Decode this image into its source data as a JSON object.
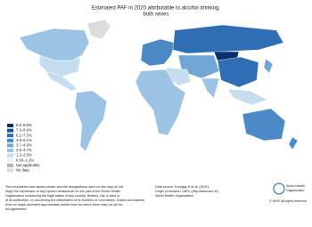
{
  "title": [
    "Estimated PAF in 2020 attributable to alcohol drinking,",
    "both sexes"
  ],
  "legend": [
    {
      "label": "8.6–9.8%",
      "color": "#08306b"
    },
    {
      "label": "7.3–8.6%",
      "color": "#1c4f99"
    },
    {
      "label": "6.1–7.3%",
      "color": "#2f6db4"
    },
    {
      "label": "4.9–6.1%",
      "color": "#4b8ac6"
    },
    {
      "label": "3.7–4.9%",
      "color": "#6fa6d6"
    },
    {
      "label": "2.5–3.7%",
      "color": "#9cc3e4"
    },
    {
      "label": "1.2–2.5%",
      "color": "#c6dcef"
    },
    {
      "label": "0.00–1.2%",
      "color": "#e8f1f9"
    },
    {
      "label": "Not applicable",
      "color": "#b5b5b5"
    },
    {
      "label": "No data",
      "color": "#dcdcdc"
    }
  ],
  "disclaimer": [
    "The boundaries and names shown and the designations used on this map do not",
    "imply the expression of any opinion whatsoever on the part of the World Health",
    "Organization concerning the legal status of any country, territory, city or area or",
    "of its authorities, or concerning the delimitation of its frontiers or boundaries. Dotted and dashed",
    "lines on maps represent approximate border lines for which there may not yet be",
    "full agreement."
  ],
  "source": [
    "Data source: Rumgay H et al. (2021)",
    "Graph production: IARC (http://www.iarc.fr/)",
    "World Health Organization"
  ],
  "logo": [
    "World Health",
    "Organization"
  ],
  "copyright": "© WHO All rights reserved"
}
